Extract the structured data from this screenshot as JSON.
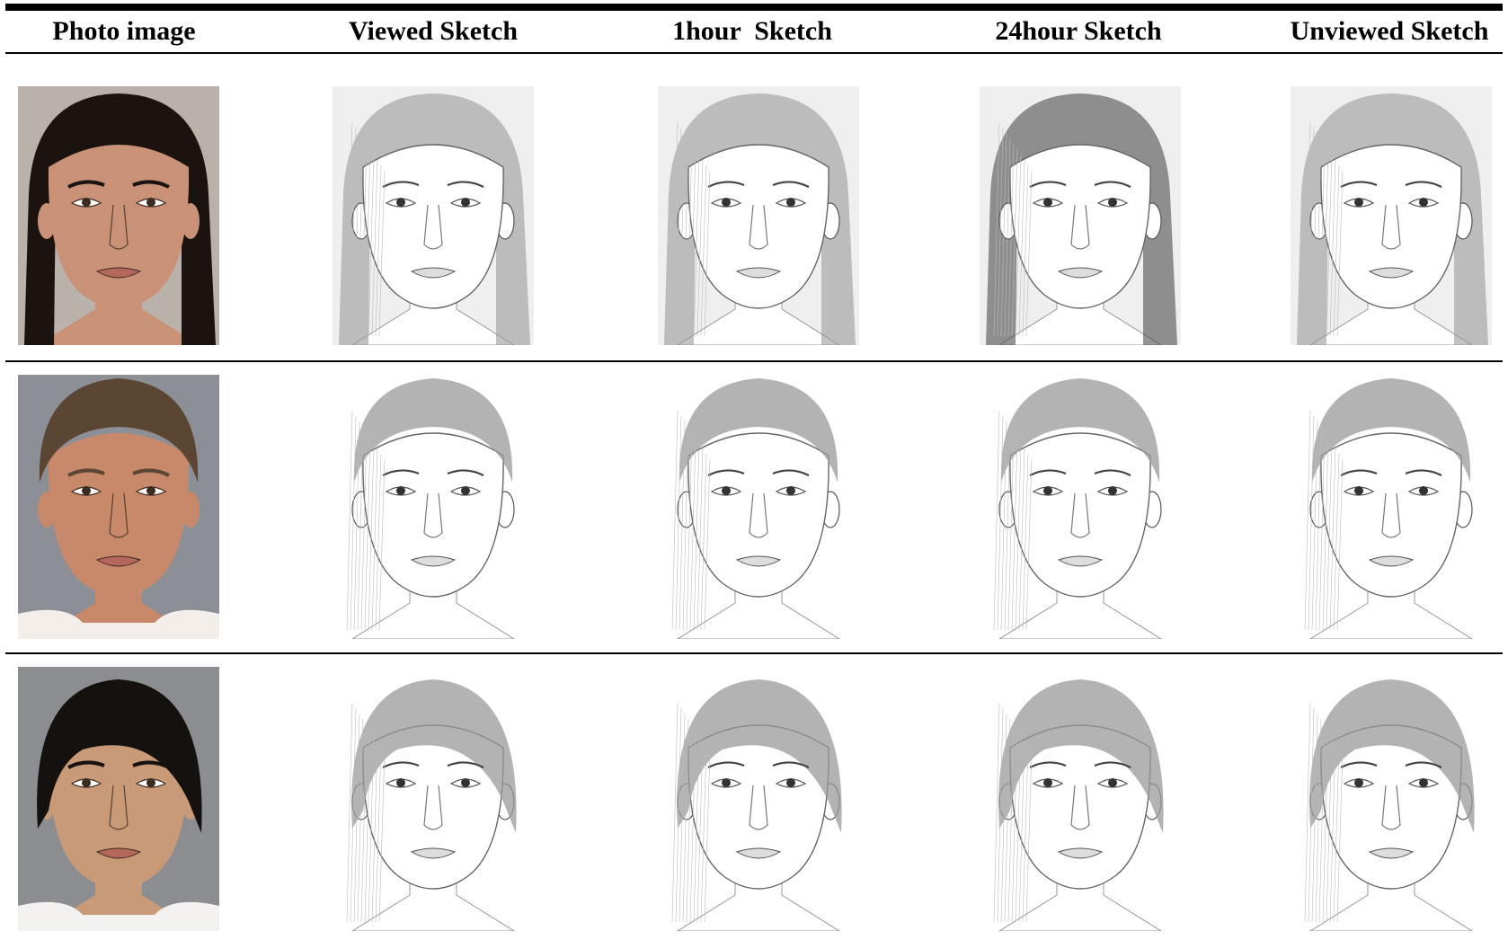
{
  "table": {
    "headers": [
      "Photo image",
      "Viewed Sketch",
      "1hour  Sketch",
      "24hour Sketch",
      "Unviewed Sketch"
    ],
    "rows": [
      {
        "photo": {
          "skin": "#c99277",
          "hair": "#1b1310",
          "background": "#b9b2ab",
          "subject": "woman-long-dark-hair",
          "shirt": ""
        },
        "sketches": [
          {
            "style": "long-hair"
          },
          {
            "style": "long-hair"
          },
          {
            "style": "long-hair-dark"
          },
          {
            "style": "long-hair"
          }
        ]
      },
      {
        "photo": {
          "skin": "#c8886a",
          "hair": "#5a4632",
          "background": "#8c8f96",
          "subject": "young-man-short-curly-hair-smiling",
          "shirt": "#f3eeea"
        },
        "sketches": [
          {
            "style": "short-curly"
          },
          {
            "style": "short-curly"
          },
          {
            "style": "short-curly"
          },
          {
            "style": "short-spiky"
          }
        ]
      },
      {
        "photo": {
          "skin": "#c99a78",
          "hair": "#15110e",
          "background": "#8b8d91",
          "subject": "young-man-black-hair-with-bangs",
          "shirt": "#f3f2f0"
        },
        "sketches": [
          {
            "style": "bangs"
          },
          {
            "style": "bangs"
          },
          {
            "style": "bangs"
          },
          {
            "style": "bangs"
          }
        ]
      }
    ]
  }
}
